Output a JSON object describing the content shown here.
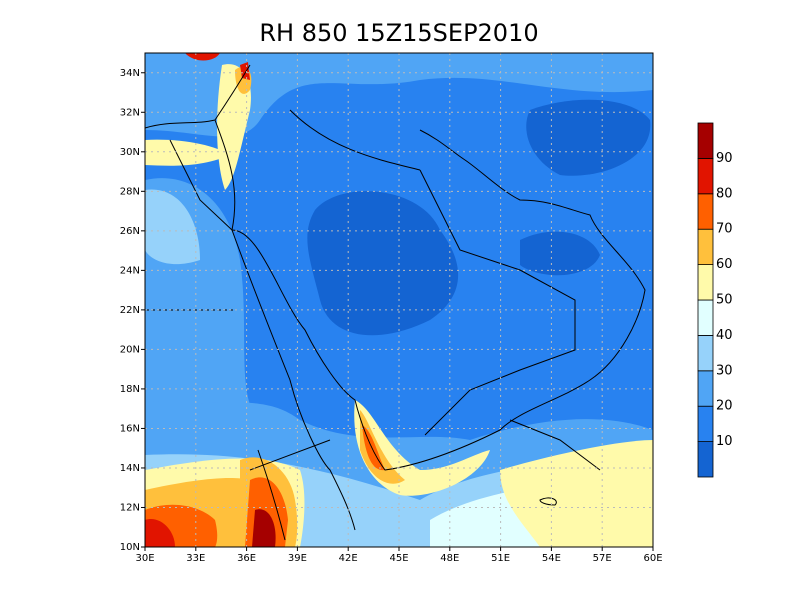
{
  "title": "RH 850 15Z15SEP2010",
  "map": {
    "xlim": [
      30,
      60
    ],
    "ylim": [
      10,
      35
    ],
    "xticks": [
      {
        "value": 30,
        "label": "30E"
      },
      {
        "value": 33,
        "label": "33E"
      },
      {
        "value": 36,
        "label": "36E"
      },
      {
        "value": 39,
        "label": "39E"
      },
      {
        "value": 42,
        "label": "42E"
      },
      {
        "value": 45,
        "label": "45E"
      },
      {
        "value": 48,
        "label": "48E"
      },
      {
        "value": 51,
        "label": "51E"
      },
      {
        "value": 54,
        "label": "54E"
      },
      {
        "value": 57,
        "label": "57E"
      },
      {
        "value": 60,
        "label": "60E"
      }
    ],
    "yticks": [
      {
        "value": 10,
        "label": "10N"
      },
      {
        "value": 12,
        "label": "12N"
      },
      {
        "value": 14,
        "label": "14N"
      },
      {
        "value": 16,
        "label": "16N"
      },
      {
        "value": 18,
        "label": "18N"
      },
      {
        "value": 20,
        "label": "20N"
      },
      {
        "value": 22,
        "label": "22N"
      },
      {
        "value": 24,
        "label": "24N"
      },
      {
        "value": 26,
        "label": "26N"
      },
      {
        "value": 28,
        "label": "28N"
      },
      {
        "value": 30,
        "label": "30N"
      },
      {
        "value": 32,
        "label": "32N"
      },
      {
        "value": 34,
        "label": "34N"
      }
    ],
    "grid": true
  },
  "colorbar": {
    "clim": [
      0,
      100
    ],
    "levels": [
      10,
      20,
      30,
      40,
      50,
      60,
      70,
      80,
      90
    ],
    "colors": [
      "#1464d2",
      "#2882f0",
      "#50a5f5",
      "#96d2fa",
      "#e1ffff",
      "#fffaaa",
      "#ffc03c",
      "#ff6000",
      "#e11400",
      "#a50000"
    ]
  }
}
